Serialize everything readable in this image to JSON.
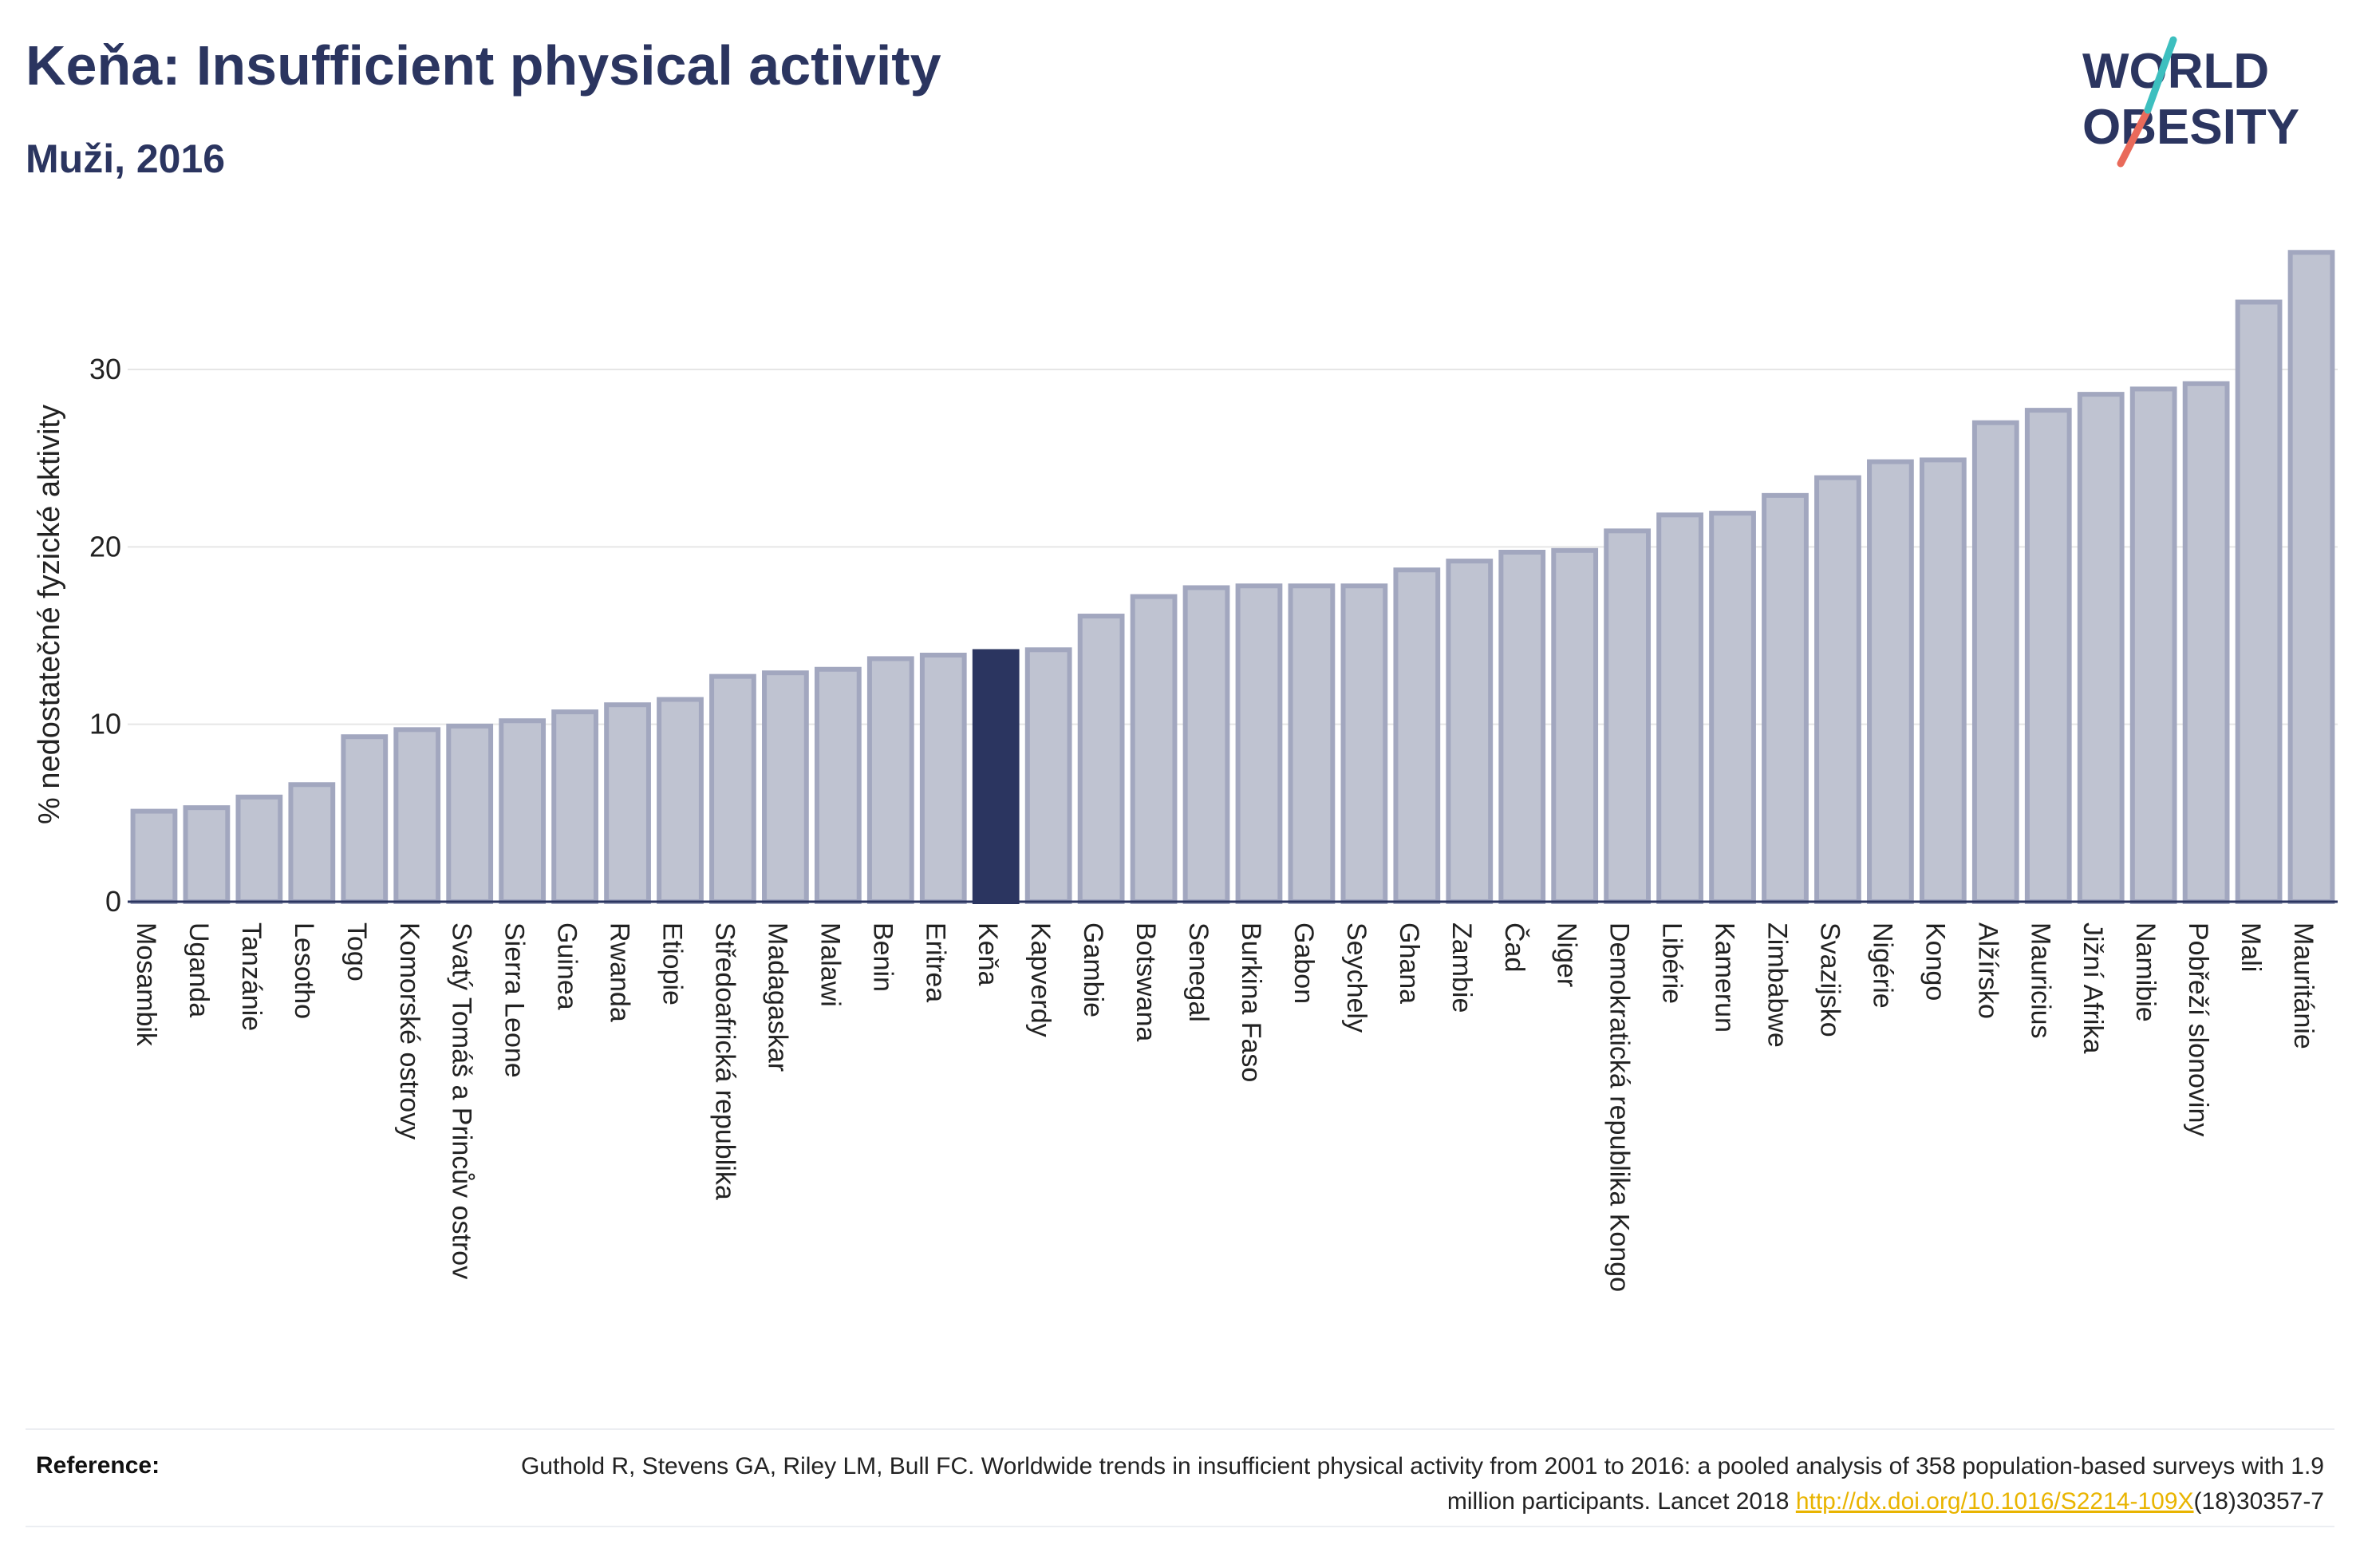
{
  "header": {
    "title": "Keňa: Insufficient physical activity",
    "subtitle": "Muži, 2016"
  },
  "logo": {
    "line1": "WORLD",
    "line2": "OBESITY",
    "colors": {
      "text": "#2b3560",
      "slash_teal": "#3dbfbf",
      "slash_coral": "#e96a5a"
    }
  },
  "reference": {
    "label": "Reference:",
    "text_part1": "Guthold R, Stevens GA, Riley LM, Bull FC. Worldwide trends in insufficient physical activity from 2001 to 2016: a pooled analysis of 358 population-based surveys with 1.9 million participants. Lancet 2018 ",
    "link": "http://dx.doi.org/10.1016/S2214-109X",
    "text_part2": "(18)30357-7"
  },
  "colors": {
    "highlight": "#2b3560",
    "bar_fill": "#bfc3d1",
    "bar_stroke": "#a2a7bf",
    "grid": "#e6e6e6",
    "axis": "#2b3560"
  },
  "chart_data": {
    "type": "bar",
    "ylabel": "% nedostatečné fyzické aktivity",
    "ylim": [
      0,
      38
    ],
    "yticks": [
      0,
      10,
      20,
      30
    ],
    "grid": true,
    "highlight": "Keňa",
    "categories": [
      "Mosambik",
      "Uganda",
      "Tanzánie",
      "Lesotho",
      "Togo",
      "Komorské ostrovy",
      "Svatý Tomáš a Princův ostrov",
      "Sierra Leone",
      "Guinea",
      "Rwanda",
      "Etiopie",
      "Středoafrická republika",
      "Madagaskar",
      "Malawi",
      "Benin",
      "Eritrea",
      "Keňa",
      "Kapverdy",
      "Gambie",
      "Botswana",
      "Senegal",
      "Burkina Faso",
      "Gabon",
      "Seychely",
      "Ghana",
      "Zambie",
      "Čad",
      "Niger",
      "Demokratická republika Kongo",
      "Libérie",
      "Kamerun",
      "Zimbabwe",
      "Svazijsko",
      "Nigérie",
      "Kongo",
      "Alžírsko",
      "Mauricius",
      "Jižní Afrika",
      "Namibie",
      "Pobřeží slonoviny",
      "Mali",
      "Mauritánie"
    ],
    "values": [
      5.1,
      5.3,
      5.9,
      6.6,
      9.3,
      9.7,
      9.9,
      10.2,
      10.7,
      11.1,
      11.4,
      12.7,
      12.9,
      13.1,
      13.7,
      13.9,
      14.1,
      14.2,
      16.1,
      17.2,
      17.7,
      17.8,
      17.8,
      17.8,
      18.7,
      19.2,
      19.7,
      19.8,
      20.9,
      21.8,
      21.9,
      22.9,
      23.9,
      24.8,
      24.9,
      27.0,
      27.7,
      28.6,
      28.9,
      29.2,
      33.8,
      36.6
    ]
  }
}
